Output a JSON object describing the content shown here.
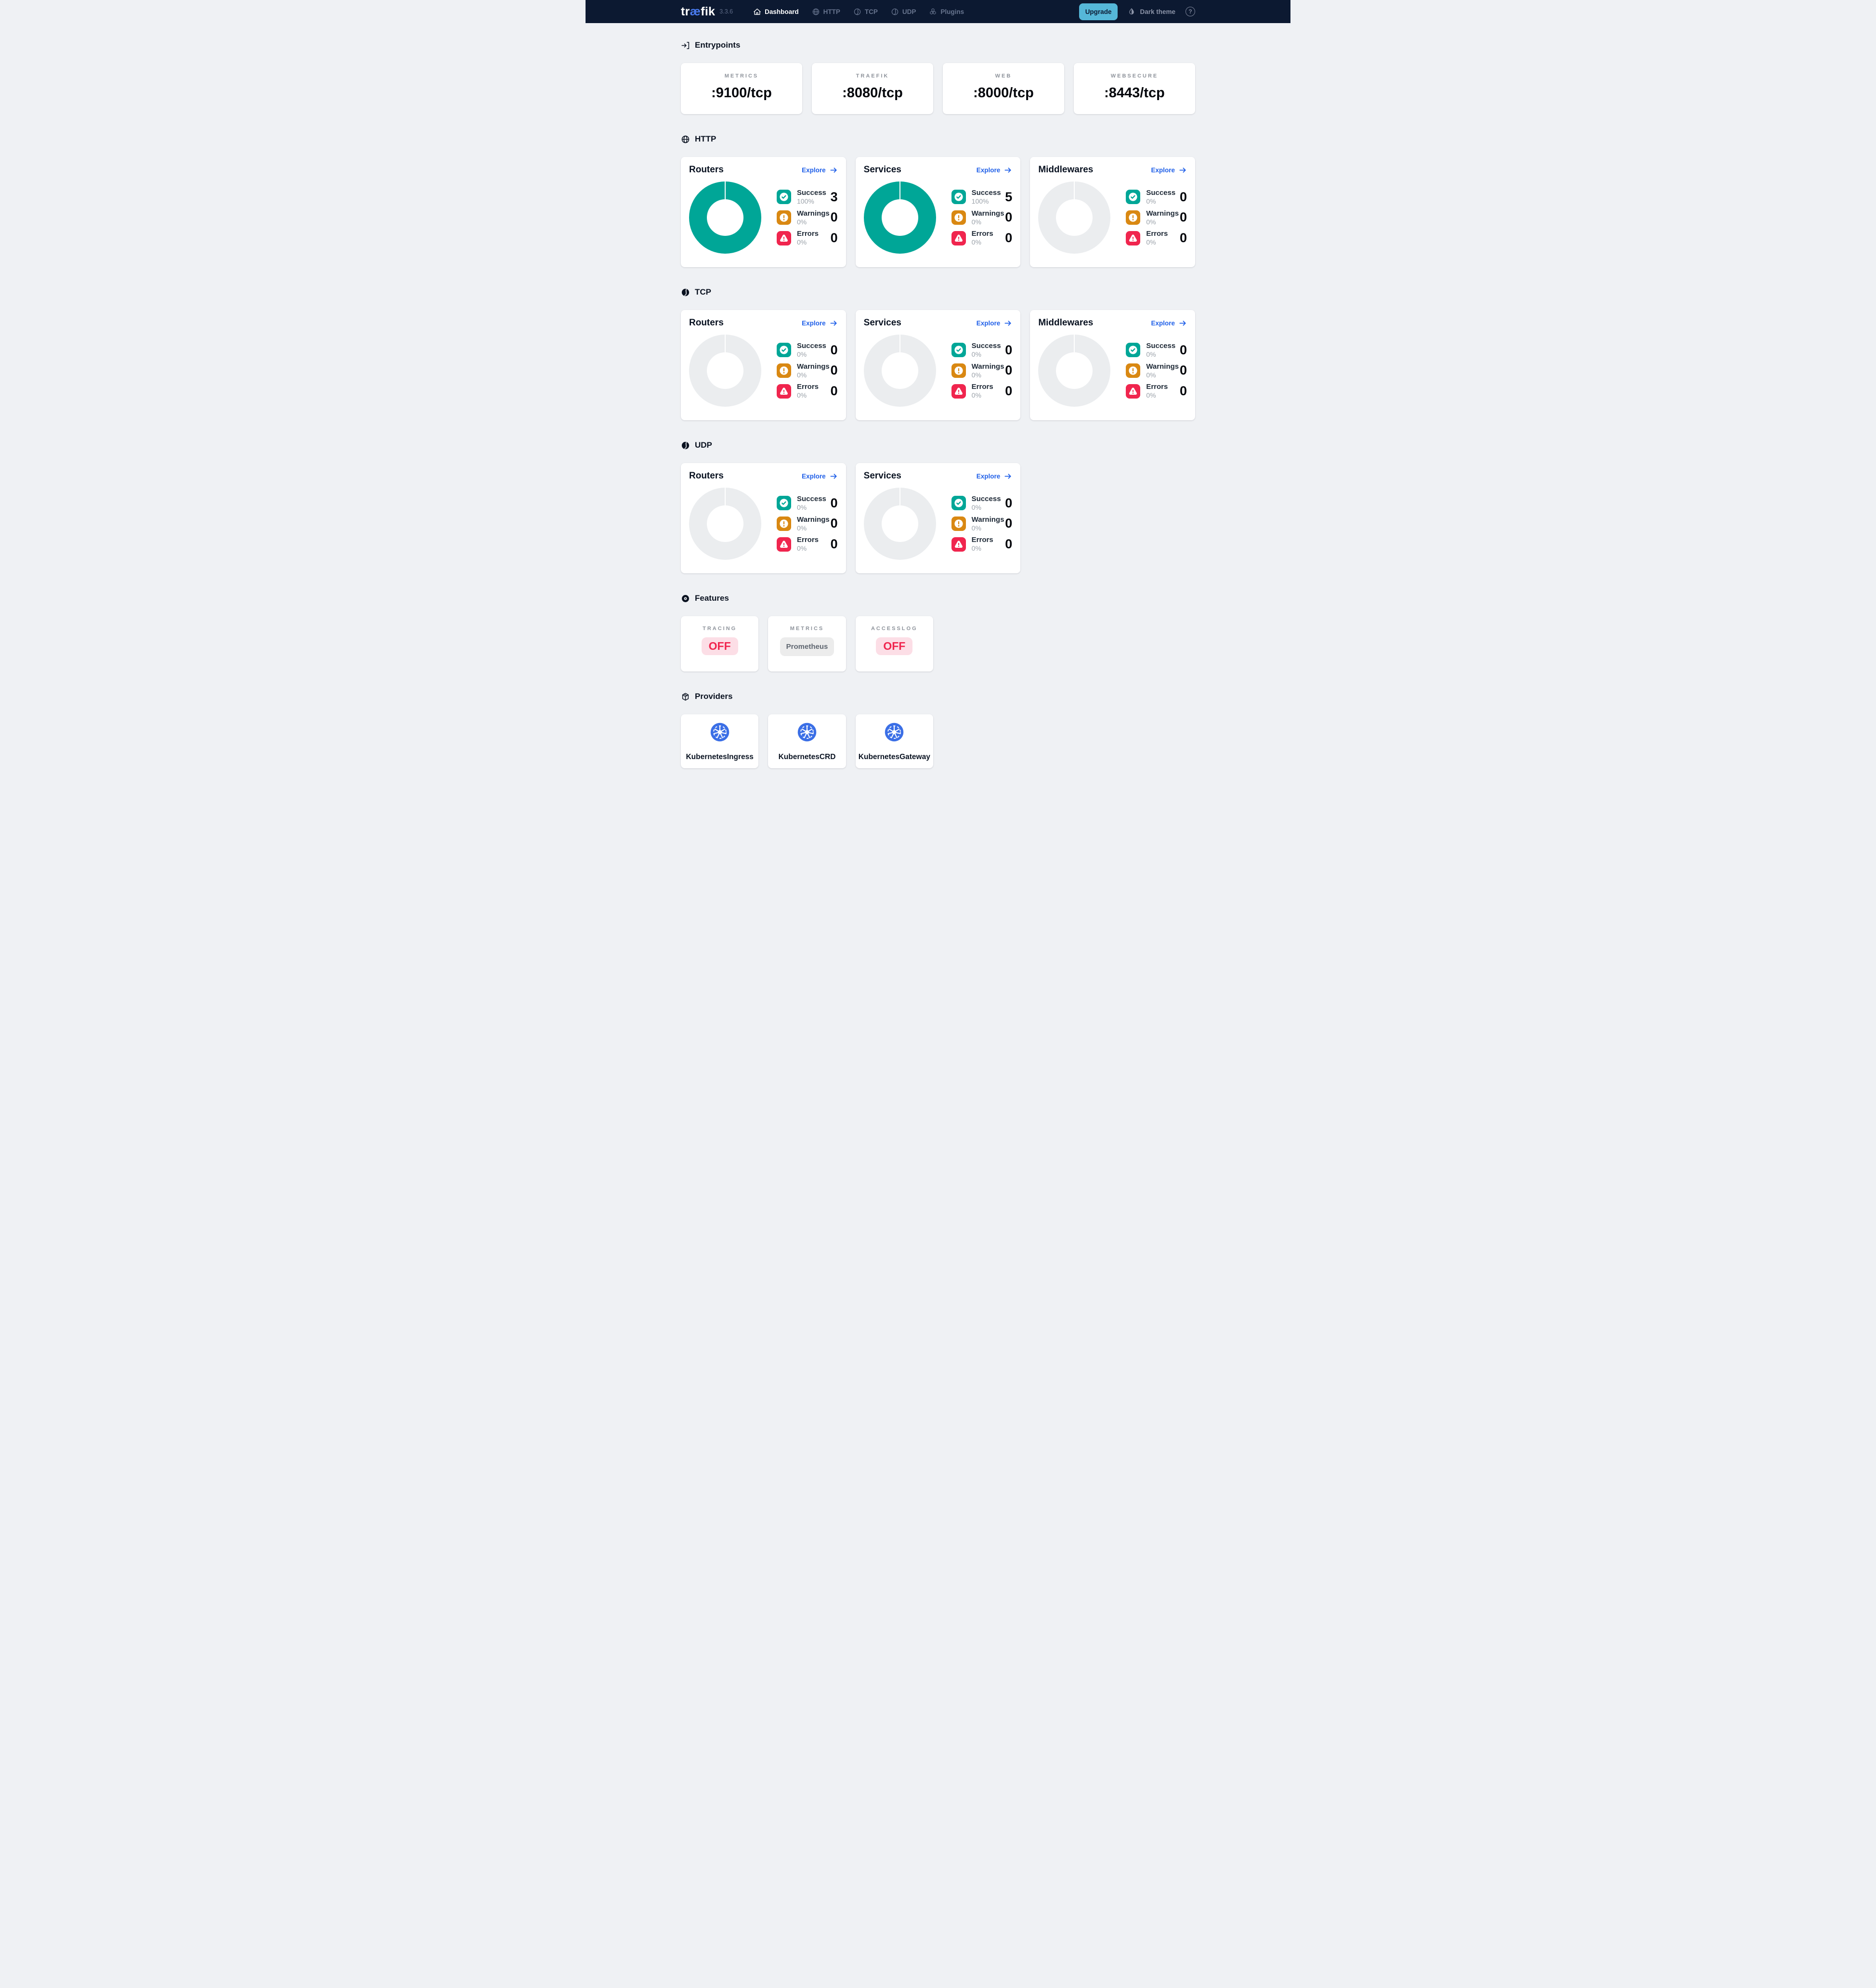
{
  "colors": {
    "navy": "#0c1931",
    "logo_blue": "#4a7cf0",
    "teal": "#00a697",
    "orange": "#d98812",
    "red": "#f0254e",
    "link": "#1f5fe8",
    "upgrade": "#55b7d8",
    "k8s_blue": "#3b6fe6",
    "page_bg": "#eff1f4"
  },
  "navbar": {
    "logo": {
      "pre": "tr",
      "ae": "æ",
      "post": "fik"
    },
    "version": "3.3.6",
    "items": [
      {
        "label": "Dashboard",
        "icon": "home-icon",
        "active": true
      },
      {
        "label": "HTTP",
        "icon": "globe-icon",
        "active": false
      },
      {
        "label": "TCP",
        "icon": "tcp-ball-icon",
        "active": false
      },
      {
        "label": "UDP",
        "icon": "udp-ball-icon",
        "active": false
      },
      {
        "label": "Plugins",
        "icon": "cubes-icon",
        "active": false
      }
    ],
    "upgrade_label": "Upgrade",
    "theme_label": "Dark theme",
    "help_glyph": "?"
  },
  "sections": {
    "entrypoints": {
      "title": "Entrypoints",
      "icon": "enter-bracket-icon",
      "cards": [
        {
          "label": "METRICS",
          "port": ":9100/tcp"
        },
        {
          "label": "TRAEFIK",
          "port": ":8080/tcp"
        },
        {
          "label": "WEB",
          "port": ":8000/tcp"
        },
        {
          "label": "WEBSECURE",
          "port": ":8443/tcp"
        }
      ]
    },
    "http": {
      "title": "HTTP",
      "icon": "globe-icon",
      "cards": [
        {
          "title": "Routers",
          "explore_label": "Explore",
          "donut_filled": true,
          "legend": [
            {
              "kind": "success",
              "icon": "check-icon",
              "label": "Success",
              "percent": "100%",
              "value": "3"
            },
            {
              "kind": "warnings",
              "icon": "exclamation-icon",
              "label": "Warnings",
              "percent": "0%",
              "value": "0"
            },
            {
              "kind": "errors",
              "icon": "alert-triangle-icon",
              "label": "Errors",
              "percent": "0%",
              "value": "0"
            }
          ]
        },
        {
          "title": "Services",
          "explore_label": "Explore",
          "donut_filled": true,
          "legend": [
            {
              "kind": "success",
              "icon": "check-icon",
              "label": "Success",
              "percent": "100%",
              "value": "5"
            },
            {
              "kind": "warnings",
              "icon": "exclamation-icon",
              "label": "Warnings",
              "percent": "0%",
              "value": "0"
            },
            {
              "kind": "errors",
              "icon": "alert-triangle-icon",
              "label": "Errors",
              "percent": "0%",
              "value": "0"
            }
          ]
        },
        {
          "title": "Middlewares",
          "explore_label": "Explore",
          "donut_filled": false,
          "legend": [
            {
              "kind": "success",
              "icon": "check-icon",
              "label": "Success",
              "percent": "0%",
              "value": "0"
            },
            {
              "kind": "warnings",
              "icon": "exclamation-icon",
              "label": "Warnings",
              "percent": "0%",
              "value": "0"
            },
            {
              "kind": "errors",
              "icon": "alert-triangle-icon",
              "label": "Errors",
              "percent": "0%",
              "value": "0"
            }
          ]
        }
      ]
    },
    "tcp": {
      "title": "TCP",
      "icon": "tcp-ball-icon",
      "cards": [
        {
          "title": "Routers",
          "explore_label": "Explore",
          "donut_filled": false,
          "legend": [
            {
              "kind": "success",
              "icon": "check-icon",
              "label": "Success",
              "percent": "0%",
              "value": "0"
            },
            {
              "kind": "warnings",
              "icon": "exclamation-icon",
              "label": "Warnings",
              "percent": "0%",
              "value": "0"
            },
            {
              "kind": "errors",
              "icon": "alert-triangle-icon",
              "label": "Errors",
              "percent": "0%",
              "value": "0"
            }
          ]
        },
        {
          "title": "Services",
          "explore_label": "Explore",
          "donut_filled": false,
          "legend": [
            {
              "kind": "success",
              "icon": "check-icon",
              "label": "Success",
              "percent": "0%",
              "value": "0"
            },
            {
              "kind": "warnings",
              "icon": "exclamation-icon",
              "label": "Warnings",
              "percent": "0%",
              "value": "0"
            },
            {
              "kind": "errors",
              "icon": "alert-triangle-icon",
              "label": "Errors",
              "percent": "0%",
              "value": "0"
            }
          ]
        },
        {
          "title": "Middlewares",
          "explore_label": "Explore",
          "donut_filled": false,
          "legend": [
            {
              "kind": "success",
              "icon": "check-icon",
              "label": "Success",
              "percent": "0%",
              "value": "0"
            },
            {
              "kind": "warnings",
              "icon": "exclamation-icon",
              "label": "Warnings",
              "percent": "0%",
              "value": "0"
            },
            {
              "kind": "errors",
              "icon": "alert-triangle-icon",
              "label": "Errors",
              "percent": "0%",
              "value": "0"
            }
          ]
        }
      ]
    },
    "udp": {
      "title": "UDP",
      "icon": "udp-ball-icon",
      "cards": [
        {
          "title": "Routers",
          "explore_label": "Explore",
          "donut_filled": false,
          "legend": [
            {
              "kind": "success",
              "icon": "check-icon",
              "label": "Success",
              "percent": "0%",
              "value": "0"
            },
            {
              "kind": "warnings",
              "icon": "exclamation-icon",
              "label": "Warnings",
              "percent": "0%",
              "value": "0"
            },
            {
              "kind": "errors",
              "icon": "alert-triangle-icon",
              "label": "Errors",
              "percent": "0%",
              "value": "0"
            }
          ]
        },
        {
          "title": "Services",
          "explore_label": "Explore",
          "donut_filled": false,
          "legend": [
            {
              "kind": "success",
              "icon": "check-icon",
              "label": "Success",
              "percent": "0%",
              "value": "0"
            },
            {
              "kind": "warnings",
              "icon": "exclamation-icon",
              "label": "Warnings",
              "percent": "0%",
              "value": "0"
            },
            {
              "kind": "errors",
              "icon": "alert-triangle-icon",
              "label": "Errors",
              "percent": "0%",
              "value": "0"
            }
          ]
        }
      ]
    },
    "features": {
      "title": "Features",
      "icon": "disc-icon",
      "cards": [
        {
          "label": "TRACING",
          "badge": "OFF",
          "state": "off"
        },
        {
          "label": "METRICS",
          "badge": "Prometheus",
          "state": "neutral"
        },
        {
          "label": "ACCESSLOG",
          "badge": "OFF",
          "state": "off"
        }
      ]
    },
    "providers": {
      "title": "Providers",
      "icon": "package-icon",
      "cards": [
        {
          "name": "KubernetesIngress",
          "icon": "kubernetes-icon"
        },
        {
          "name": "KubernetesCRD",
          "icon": "kubernetes-icon"
        },
        {
          "name": "KubernetesGateway",
          "icon": "kubernetes-icon"
        }
      ]
    }
  }
}
